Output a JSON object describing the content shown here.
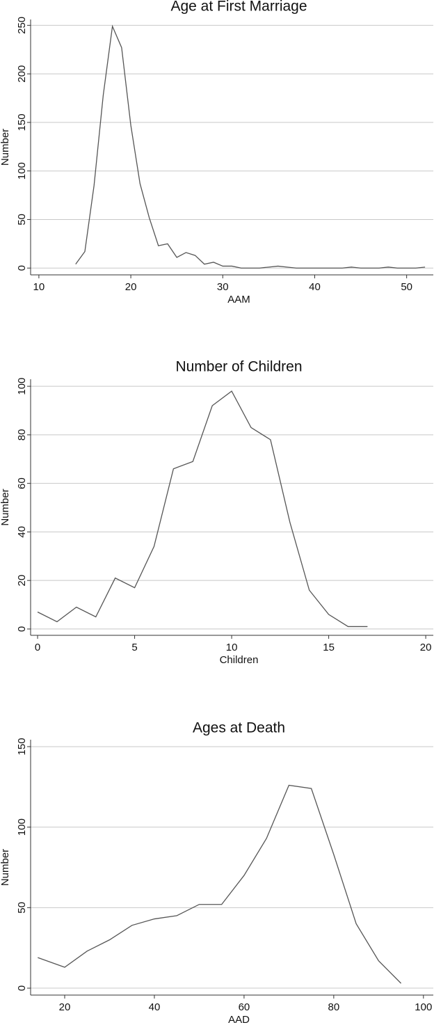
{
  "chart_data": [
    {
      "type": "line",
      "title": "Age at First Marriage",
      "xlabel": "AAM",
      "ylabel": "Number",
      "x": [
        14,
        15,
        16,
        17,
        18,
        19,
        20,
        21,
        22,
        23,
        24,
        25,
        26,
        27,
        28,
        29,
        30,
        31,
        32,
        33,
        34,
        35,
        36,
        37,
        38,
        39,
        40,
        41,
        42,
        43,
        44,
        45,
        46,
        47,
        48,
        49,
        50,
        51,
        52
      ],
      "values": [
        4,
        17,
        85,
        178,
        249,
        227,
        147,
        87,
        52,
        23,
        25,
        11,
        16,
        13,
        4,
        6,
        2,
        2,
        0,
        0,
        0,
        1,
        2,
        1,
        0,
        0,
        0,
        0,
        0,
        0,
        1,
        0,
        0,
        0,
        1,
        0,
        0,
        0,
        1
      ],
      "color": "#555555",
      "xlim": [
        9.1,
        52.9
      ],
      "ylim": [
        -7,
        256
      ],
      "xticks": [
        10,
        20,
        30,
        40,
        50
      ],
      "yticks": [
        0,
        50,
        100,
        150,
        200,
        250
      ],
      "grid": true
    },
    {
      "type": "line",
      "title": "Number of Children",
      "xlabel": "Children",
      "ylabel": "Number",
      "x": [
        0,
        1,
        2,
        3,
        4,
        5,
        6,
        7,
        8,
        9,
        10,
        11,
        12,
        13,
        14,
        15,
        16,
        17
      ],
      "values": [
        7,
        3,
        9,
        5,
        21,
        17,
        34,
        66,
        69,
        92,
        98,
        83,
        78,
        44,
        16,
        6,
        1,
        1
      ],
      "color": "#555555",
      "xlim": [
        -0.36,
        20.39
      ],
      "ylim": [
        -2.6,
        102.9
      ],
      "xticks": [
        0,
        5,
        10,
        15,
        20
      ],
      "yticks": [
        0,
        20,
        40,
        60,
        80,
        100
      ],
      "grid": true
    },
    {
      "type": "line",
      "title": "Ages at Death",
      "xlabel": "AAD",
      "ylabel": "Number",
      "x": [
        14,
        20,
        25,
        30,
        35,
        40,
        45,
        50,
        55,
        60,
        65,
        70,
        75,
        80,
        85,
        90,
        95
      ],
      "values": [
        19,
        13,
        23,
        30,
        39,
        43,
        45,
        52,
        52,
        70,
        93,
        126,
        124,
        83,
        40,
        17,
        3
      ],
      "color": "#555555",
      "xlim": [
        12.4,
        102.2
      ],
      "ylim": [
        -4.3,
        154.3
      ],
      "xticks": [
        20,
        40,
        60,
        80,
        100
      ],
      "yticks": [
        0,
        50,
        100,
        150
      ],
      "grid": true
    }
  ]
}
